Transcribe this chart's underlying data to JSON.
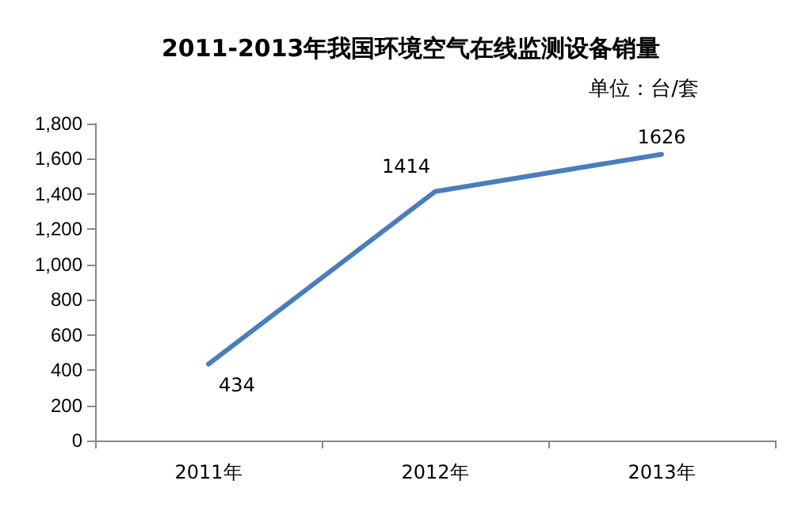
{
  "chart_data": {
    "type": "line",
    "title": "2011-2013年我国环境空气在线监测设备销量",
    "subtitle": "单位：台/套",
    "categories": [
      "2011年",
      "2012年",
      "2013年"
    ],
    "series": [
      {
        "color": "#4a7ebb",
        "values": [
          434,
          1414,
          1626
        ]
      }
    ],
    "ylim": [
      0,
      1800
    ],
    "yticks": [
      0,
      200,
      400,
      600,
      800,
      {
        "value": 1000,
        "label": "1,000"
      },
      {
        "value": 1200,
        "label": "1,200"
      },
      {
        "value": 1400,
        "label": "1,400"
      },
      {
        "value": 1600,
        "label": "1,600"
      },
      {
        "value": 1800,
        "label": "1,800"
      }
    ],
    "data_labels": true,
    "marker": "none",
    "line_style": "solid"
  }
}
